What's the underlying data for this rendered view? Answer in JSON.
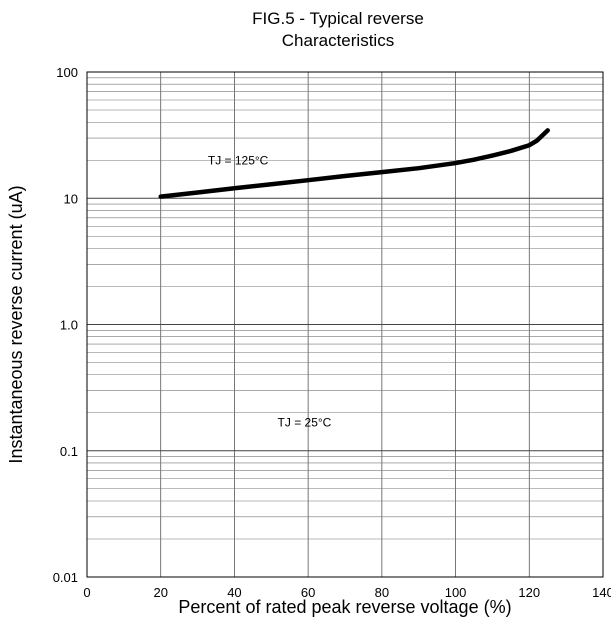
{
  "chart_data": {
    "type": "line",
    "title": "FIG.5 - Typical reverse\nCharacteristics",
    "xlabel": "Percent of rated peak reverse voltage (%)",
    "ylabel": "Instantaneous reverse current (uA)",
    "xlim": [
      0,
      140
    ],
    "ylim": [
      0.01,
      100
    ],
    "yscale": "log",
    "grid": true,
    "x_ticks": [
      {
        "value": 0,
        "label": "0"
      },
      {
        "value": 20,
        "label": "20"
      },
      {
        "value": 40,
        "label": "40"
      },
      {
        "value": 60,
        "label": "60"
      },
      {
        "value": 80,
        "label": "80"
      },
      {
        "value": 100,
        "label": "100"
      },
      {
        "value": 120,
        "label": "120"
      },
      {
        "value": 140,
        "label": "140"
      }
    ],
    "y_ticks": [
      {
        "value": 100,
        "label": "100"
      },
      {
        "value": 10,
        "label": "10"
      },
      {
        "value": 1,
        "label": "1.0"
      },
      {
        "value": 0.1,
        "label": "0.1"
      },
      {
        "value": 0.01,
        "label": "0.01"
      }
    ],
    "series": [
      {
        "name": "TJ = 125°C",
        "color": "#000000",
        "x": [
          20,
          30,
          40,
          50,
          60,
          70,
          80,
          90,
          100,
          105,
          110,
          115,
          120,
          122,
          125
        ],
        "y": [
          10.3,
          11.1,
          12.0,
          12.9,
          13.9,
          15.0,
          16.1,
          17.3,
          19.0,
          20.2,
          21.8,
          23.7,
          26.3,
          28.5,
          34.5
        ]
      }
    ],
    "annotations": [
      {
        "text": "TJ = 125°C",
        "x": 41,
        "y": 18.5
      },
      {
        "text": "TJ = 25°C",
        "x": 59,
        "y": 0.155
      }
    ]
  }
}
